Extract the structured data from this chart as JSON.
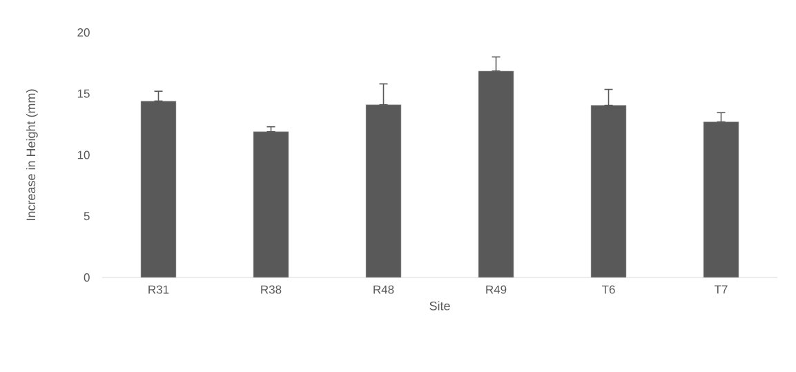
{
  "chart_data": {
    "type": "bar",
    "xlabel": "Site",
    "ylabel": "Increase in Height (mm)",
    "categories": [
      "R31",
      "R38",
      "R48",
      "R49",
      "T6",
      "T7"
    ],
    "values": [
      14.4,
      11.9,
      14.1,
      16.85,
      14.05,
      12.7
    ],
    "errors": [
      [
        14.4,
        15.2
      ],
      [
        11.9,
        12.3
      ],
      [
        14.1,
        15.8
      ],
      [
        16.85,
        18.0
      ],
      [
        14.05,
        15.35
      ],
      [
        12.7,
        13.45
      ]
    ],
    "color": "#595959",
    "ylim": [
      0,
      20
    ],
    "yticks": [
      0,
      5,
      10,
      15,
      20
    ],
    "grid": false
  }
}
